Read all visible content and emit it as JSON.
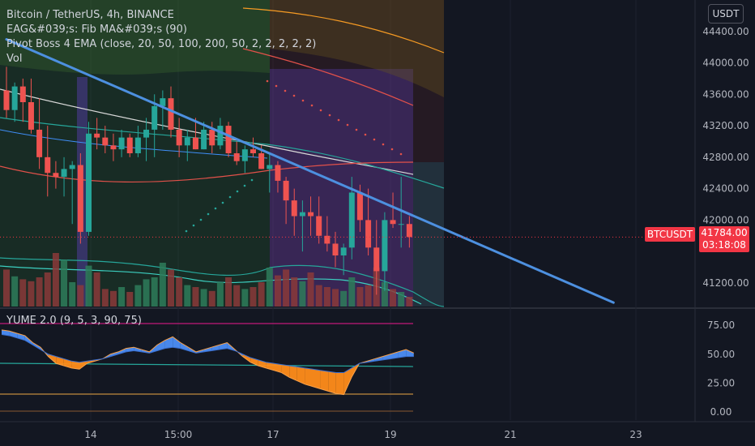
{
  "legend": {
    "title": "Bitcoin / TetherUS, 4h, BINANCE",
    "ind1": "EAG&#039;s: Fib MA&#039;s (90)",
    "ind2": "Pivot Boss 4 EMA (close, 20, 50, 100, 200, 50, 2, 2, 2, 2, 2)",
    "ind3": "Vol"
  },
  "currency": "USDT",
  "symbol_tag": "BTCUSDT",
  "price_tag": {
    "price": "41784.00",
    "countdown": "03:18:08"
  },
  "oscillator": {
    "label": "YUME 2.0 (9, 5, 3, 90, 75)"
  },
  "colors": {
    "up": "#26a69a",
    "down": "#ef5350",
    "trendline": "#4d90e0",
    "oscFill": "#ff8c1a",
    "oscLine": "#4c8ef7"
  },
  "chart_data": {
    "type": "candlestick",
    "title": "Bitcoin / TetherUS, 4h, BINANCE",
    "price_axis": {
      "ticks": [
        "44400.00",
        "44000.00",
        "43600.00",
        "43200.00",
        "42800.00",
        "42400.00",
        "42000.00",
        "41200.00"
      ],
      "range": [
        40900,
        44800
      ]
    },
    "time_axis": {
      "ticks": [
        "14",
        "15:00",
        "17",
        "19",
        "21",
        "23"
      ]
    },
    "candles": [
      [
        43650,
        43950,
        43300,
        43400
      ],
      [
        43400,
        43750,
        43250,
        43700
      ],
      [
        43700,
        43800,
        43250,
        43500
      ],
      [
        43500,
        43800,
        43100,
        43150
      ],
      [
        43150,
        43550,
        42650,
        42800
      ],
      [
        42800,
        43200,
        42300,
        42600
      ],
      [
        42600,
        42750,
        42400,
        42550
      ],
      [
        42550,
        42800,
        42300,
        42650
      ],
      [
        42650,
        42750,
        41950,
        42700
      ],
      [
        42700,
        42850,
        41700,
        41850
      ],
      [
        41850,
        43250,
        41800,
        43100
      ],
      [
        43100,
        43300,
        42900,
        43050
      ],
      [
        43050,
        43200,
        42850,
        42950
      ],
      [
        42950,
        43100,
        42750,
        42900
      ],
      [
        42900,
        43150,
        42800,
        43050
      ],
      [
        43050,
        43100,
        42800,
        42850
      ],
      [
        42850,
        43200,
        42800,
        43050
      ],
      [
        43050,
        43300,
        42750,
        43150
      ],
      [
        43150,
        43600,
        42800,
        43450
      ],
      [
        43450,
        43650,
        43150,
        43550
      ],
      [
        43550,
        43700,
        43050,
        43150
      ],
      [
        43150,
        43300,
        42800,
        42950
      ],
      [
        42950,
        43150,
        42750,
        43050
      ],
      [
        43050,
        43300,
        42900,
        42900
      ],
      [
        42900,
        43250,
        42900,
        43150
      ],
      [
        43150,
        43250,
        42850,
        42950
      ],
      [
        42950,
        43300,
        42900,
        43200
      ],
      [
        43200,
        43250,
        42800,
        42850
      ],
      [
        42850,
        43000,
        42700,
        42750
      ],
      [
        42750,
        42950,
        42600,
        42900
      ],
      [
        42900,
        43050,
        42800,
        42850
      ],
      [
        42850,
        42950,
        42650,
        42650
      ],
      [
        42650,
        42850,
        42350,
        42700
      ],
      [
        42700,
        42750,
        42350,
        42500
      ],
      [
        42500,
        42550,
        41950,
        42250
      ],
      [
        42250,
        42400,
        41800,
        42050
      ],
      [
        42050,
        42250,
        41600,
        42100
      ],
      [
        42100,
        42300,
        41800,
        42050
      ],
      [
        42050,
        42300,
        41700,
        41800
      ],
      [
        41800,
        42050,
        41600,
        41700
      ],
      [
        41700,
        41850,
        41400,
        41550
      ],
      [
        41550,
        41700,
        41300,
        41650
      ],
      [
        41650,
        42550,
        41500,
        42350
      ],
      [
        42350,
        42450,
        41850,
        42000
      ],
      [
        42000,
        42400,
        41550,
        41650
      ],
      [
        41650,
        42000,
        41050,
        41350
      ],
      [
        41350,
        42100,
        41100,
        42000
      ],
      [
        42000,
        42350,
        41900,
        41950
      ],
      [
        41950,
        42550,
        41650,
        41950
      ],
      [
        41950,
        42050,
        41650,
        41784
      ]
    ],
    "volume": [
      0.38,
      0.31,
      0.28,
      0.26,
      0.3,
      0.35,
      0.55,
      0.48,
      0.25,
      0.22,
      0.42,
      0.35,
      0.18,
      0.16,
      0.2,
      0.15,
      0.22,
      0.28,
      0.3,
      0.45,
      0.38,
      0.3,
      0.22,
      0.2,
      0.18,
      0.16,
      0.25,
      0.3,
      0.22,
      0.18,
      0.2,
      0.25,
      0.4,
      0.32,
      0.38,
      0.3,
      0.26,
      0.35,
      0.22,
      0.2,
      0.18,
      0.16,
      0.3,
      0.2,
      0.22,
      0.4,
      0.25,
      0.18,
      0.15,
      0.1
    ],
    "oscillator": {
      "range": [
        0,
        80
      ],
      "ticks": [
        "75.00",
        "50.00",
        "25.00",
        "0.00"
      ],
      "fast": [
        71,
        70,
        68,
        66,
        60,
        56,
        48,
        42,
        40,
        38,
        37,
        42,
        44,
        46,
        50,
        52,
        55,
        56,
        54,
        52,
        58,
        62,
        65,
        60,
        56,
        52,
        54,
        56,
        58,
        60,
        54,
        48,
        43,
        40,
        38,
        36,
        34,
        30,
        27,
        24,
        22,
        20,
        18,
        16,
        15,
        30,
        42,
        44,
        46,
        48,
        50,
        52,
        54,
        51
      ],
      "slow": [
        67,
        66,
        64,
        62,
        58,
        54,
        50,
        48,
        46,
        44,
        43,
        44,
        45,
        46,
        48,
        50,
        52,
        53,
        52,
        51,
        53,
        55,
        56,
        55,
        53,
        51,
        52,
        53,
        54,
        55,
        53,
        50,
        47,
        45,
        43,
        42,
        41,
        40,
        39,
        38,
        37,
        36,
        35,
        34,
        34,
        38,
        42,
        43,
        44,
        45,
        46,
        47,
        48,
        48
      ]
    },
    "trendline": {
      "from": [
        0,
        44300
      ],
      "to": [
        62,
        40950
      ]
    }
  }
}
